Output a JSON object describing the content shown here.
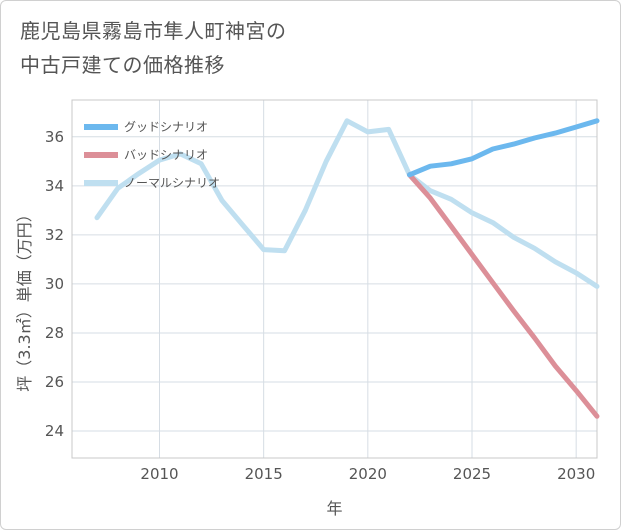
{
  "chart_data": {
    "type": "line",
    "title": [
      "鹿児島県霧島市隼人町神宮の",
      "中古戸建ての価格推移"
    ],
    "xlabel": "年",
    "ylabel": "坪（3.3㎡）単価（万円）",
    "xlim": [
      2005.8,
      2031
    ],
    "ylim": [
      22.9,
      37.5
    ],
    "x_ticks": [
      2010,
      2015,
      2020,
      2025,
      2030
    ],
    "y_ticks": [
      24,
      26,
      28,
      30,
      32,
      34,
      36
    ],
    "grid": true,
    "legend_position": "top-left",
    "series": [
      {
        "name": "グッドシナリオ",
        "color": "#6cb8ee",
        "x": [
          2022,
          2023,
          2024,
          2025,
          2026,
          2027,
          2028,
          2029,
          2030,
          2031
        ],
        "values": [
          34.45,
          34.8,
          34.9,
          35.1,
          35.5,
          35.7,
          35.95,
          36.15,
          36.4,
          36.65
        ]
      },
      {
        "name": "バッドシナリオ",
        "color": "#dc8f98",
        "x": [
          2022,
          2023,
          2024,
          2025,
          2026,
          2027,
          2028,
          2029,
          2030,
          2031
        ],
        "values": [
          34.45,
          33.5,
          32.35,
          31.2,
          30.05,
          28.9,
          27.8,
          26.65,
          25.65,
          24.6
        ]
      },
      {
        "name": "ノーマルシナリオ",
        "color": "#bfdff0",
        "x": [
          2007,
          2008,
          2009,
          2010,
          2011,
          2012,
          2013,
          2014,
          2015,
          2016,
          2017,
          2018,
          2019,
          2020,
          2021,
          2022,
          2023,
          2024,
          2025,
          2026,
          2027,
          2028,
          2029,
          2030,
          2031
        ],
        "values": [
          32.7,
          33.9,
          34.5,
          35.05,
          35.3,
          34.9,
          33.4,
          32.4,
          31.4,
          31.35,
          33.0,
          35.0,
          36.65,
          36.2,
          36.3,
          34.45,
          33.8,
          33.45,
          32.9,
          32.5,
          31.9,
          31.45,
          30.9,
          30.45,
          29.9
        ]
      }
    ]
  }
}
